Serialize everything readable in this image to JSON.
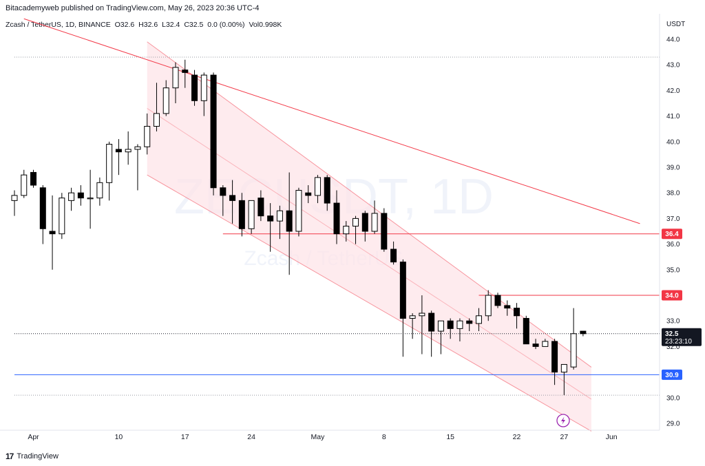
{
  "header": {
    "publisher_line": "Bitacademyweb published on TradingView.com, May 26, 2023 20:36 UTC-4"
  },
  "symbol": {
    "name": "Zcash / TetherUS, 1D, BINANCE",
    "open": "O32.6",
    "high": "H32.6",
    "low": "L32.4",
    "close": "C32.5",
    "change": "0.0 (0.00%)",
    "volume": "Vol0.998K"
  },
  "watermark": {
    "ticker": "ZECUSDT, 1D",
    "name": "Zcash / TetherUS"
  },
  "footer": {
    "brand": "TradingView"
  },
  "colors": {
    "up": "#ffffff",
    "down": "#000000",
    "trendline": "#f23645",
    "support": "#2962ff",
    "channel_fill": "#fde4e8"
  },
  "chart_data": {
    "type": "candlestick",
    "currency_label": "USDT",
    "ylim": [
      28.6,
      44.5
    ],
    "y_ticks": [
      "44.0",
      "43.0",
      "42.0",
      "41.0",
      "40.0",
      "39.0",
      "38.0",
      "37.0",
      "36.0",
      "35.0",
      "33.0",
      "32.0",
      "30.0",
      "29.0"
    ],
    "x_ticks": [
      {
        "label": "Apr",
        "date": "2023-04-01"
      },
      {
        "label": "10",
        "date": "2023-04-10"
      },
      {
        "label": "17",
        "date": "2023-04-17"
      },
      {
        "label": "24",
        "date": "2023-04-24"
      },
      {
        "label": "May",
        "date": "2023-05-01"
      },
      {
        "label": "8",
        "date": "2023-05-08"
      },
      {
        "label": "15",
        "date": "2023-05-15"
      },
      {
        "label": "22",
        "date": "2023-05-22"
      },
      {
        "label": "27",
        "date": "2023-05-27"
      },
      {
        "label": "Jun",
        "date": "2023-06-01"
      }
    ],
    "date_range": [
      "2023-03-30",
      "2023-06-06"
    ],
    "candles": [
      {
        "date": "2023-03-30",
        "o": 37.7,
        "h": 38.1,
        "l": 37.1,
        "c": 37.9
      },
      {
        "date": "2023-03-31",
        "o": 37.9,
        "h": 38.9,
        "l": 37.8,
        "c": 38.7
      },
      {
        "date": "2023-04-01",
        "o": 38.8,
        "h": 38.9,
        "l": 38.2,
        "c": 38.3
      },
      {
        "date": "2023-04-02",
        "o": 38.2,
        "h": 38.3,
        "l": 36.0,
        "c": 36.6
      },
      {
        "date": "2023-04-03",
        "o": 36.5,
        "h": 37.9,
        "l": 35.0,
        "c": 36.4
      },
      {
        "date": "2023-04-04",
        "o": 36.4,
        "h": 38.0,
        "l": 36.2,
        "c": 37.8
      },
      {
        "date": "2023-04-05",
        "o": 37.7,
        "h": 38.2,
        "l": 37.3,
        "c": 38.0
      },
      {
        "date": "2023-04-06",
        "o": 38.0,
        "h": 38.3,
        "l": 37.5,
        "c": 37.8
      },
      {
        "date": "2023-04-07",
        "o": 37.8,
        "h": 38.9,
        "l": 36.6,
        "c": 37.8
      },
      {
        "date": "2023-04-08",
        "o": 37.8,
        "h": 38.6,
        "l": 37.5,
        "c": 38.4
      },
      {
        "date": "2023-04-09",
        "o": 38.4,
        "h": 40.0,
        "l": 37.7,
        "c": 39.9
      },
      {
        "date": "2023-04-10",
        "o": 39.7,
        "h": 40.1,
        "l": 38.7,
        "c": 39.6
      },
      {
        "date": "2023-04-11",
        "o": 39.6,
        "h": 40.4,
        "l": 39.1,
        "c": 39.7
      },
      {
        "date": "2023-04-12",
        "o": 39.7,
        "h": 39.9,
        "l": 38.1,
        "c": 39.8
      },
      {
        "date": "2023-04-13",
        "o": 39.8,
        "h": 41.1,
        "l": 39.5,
        "c": 40.6
      },
      {
        "date": "2023-04-14",
        "o": 40.6,
        "h": 42.3,
        "l": 40.4,
        "c": 41.1
      },
      {
        "date": "2023-04-15",
        "o": 41.1,
        "h": 42.4,
        "l": 41.0,
        "c": 42.1
      },
      {
        "date": "2023-04-16",
        "o": 42.1,
        "h": 43.1,
        "l": 41.5,
        "c": 42.9
      },
      {
        "date": "2023-04-17",
        "o": 42.8,
        "h": 43.2,
        "l": 42.1,
        "c": 42.7
      },
      {
        "date": "2023-04-18",
        "o": 42.6,
        "h": 42.8,
        "l": 41.4,
        "c": 41.6
      },
      {
        "date": "2023-04-19",
        "o": 41.6,
        "h": 42.7,
        "l": 41.0,
        "c": 42.6
      },
      {
        "date": "2023-04-20",
        "o": 42.6,
        "h": 42.7,
        "l": 37.9,
        "c": 38.2
      },
      {
        "date": "2023-04-21",
        "o": 38.2,
        "h": 38.3,
        "l": 37.1,
        "c": 37.9
      },
      {
        "date": "2023-04-22",
        "o": 37.9,
        "h": 38.5,
        "l": 36.8,
        "c": 37.7
      },
      {
        "date": "2023-04-23",
        "o": 37.7,
        "h": 38.0,
        "l": 36.3,
        "c": 36.6
      },
      {
        "date": "2023-04-24",
        "o": 36.6,
        "h": 37.7,
        "l": 36.4,
        "c": 37.7
      },
      {
        "date": "2023-04-25",
        "o": 37.8,
        "h": 38.1,
        "l": 36.9,
        "c": 37.1
      },
      {
        "date": "2023-04-26",
        "o": 37.1,
        "h": 37.6,
        "l": 35.7,
        "c": 36.9
      },
      {
        "date": "2023-04-27",
        "o": 36.9,
        "h": 37.5,
        "l": 36.2,
        "c": 37.3
      },
      {
        "date": "2023-04-28",
        "o": 37.3,
        "h": 38.8,
        "l": 34.8,
        "c": 36.5
      },
      {
        "date": "2023-04-29",
        "o": 36.5,
        "h": 38.2,
        "l": 36.3,
        "c": 38.1
      },
      {
        "date": "2023-04-30",
        "o": 38.0,
        "h": 38.3,
        "l": 37.6,
        "c": 37.9
      },
      {
        "date": "2023-05-01",
        "o": 37.9,
        "h": 38.7,
        "l": 37.6,
        "c": 38.6
      },
      {
        "date": "2023-05-02",
        "o": 38.6,
        "h": 38.7,
        "l": 37.3,
        "c": 37.6
      },
      {
        "date": "2023-05-03",
        "o": 37.6,
        "h": 38.1,
        "l": 36.0,
        "c": 36.4
      },
      {
        "date": "2023-05-04",
        "o": 36.4,
        "h": 36.9,
        "l": 36.1,
        "c": 36.7
      },
      {
        "date": "2023-05-05",
        "o": 36.7,
        "h": 37.1,
        "l": 36.0,
        "c": 37.0
      },
      {
        "date": "2023-05-06",
        "o": 37.2,
        "h": 37.3,
        "l": 36.1,
        "c": 36.5
      },
      {
        "date": "2023-05-07",
        "o": 36.5,
        "h": 37.7,
        "l": 36.4,
        "c": 37.2
      },
      {
        "date": "2023-05-08",
        "o": 37.2,
        "h": 37.4,
        "l": 35.7,
        "c": 35.8
      },
      {
        "date": "2023-05-09",
        "o": 35.8,
        "h": 36.1,
        "l": 35.2,
        "c": 35.3
      },
      {
        "date": "2023-05-10",
        "o": 35.3,
        "h": 35.4,
        "l": 31.6,
        "c": 33.1
      },
      {
        "date": "2023-05-11",
        "o": 33.1,
        "h": 33.3,
        "l": 32.3,
        "c": 33.2
      },
      {
        "date": "2023-05-12",
        "o": 33.2,
        "h": 34.0,
        "l": 31.7,
        "c": 33.3
      },
      {
        "date": "2023-05-13",
        "o": 33.3,
        "h": 33.4,
        "l": 31.6,
        "c": 32.6
      },
      {
        "date": "2023-05-14",
        "o": 32.6,
        "h": 33.0,
        "l": 31.7,
        "c": 33.0
      },
      {
        "date": "2023-05-15",
        "o": 33.0,
        "h": 33.1,
        "l": 32.3,
        "c": 32.7
      },
      {
        "date": "2023-05-16",
        "o": 32.7,
        "h": 33.1,
        "l": 32.2,
        "c": 33.0
      },
      {
        "date": "2023-05-17",
        "o": 33.0,
        "h": 33.1,
        "l": 32.6,
        "c": 32.9
      },
      {
        "date": "2023-05-18",
        "o": 32.9,
        "h": 33.5,
        "l": 32.6,
        "c": 33.2
      },
      {
        "date": "2023-05-19",
        "o": 33.2,
        "h": 34.2,
        "l": 33.0,
        "c": 34.0
      },
      {
        "date": "2023-05-20",
        "o": 34.0,
        "h": 34.1,
        "l": 33.5,
        "c": 33.6
      },
      {
        "date": "2023-05-21",
        "o": 33.6,
        "h": 33.8,
        "l": 33.2,
        "c": 33.5
      },
      {
        "date": "2023-05-22",
        "o": 33.5,
        "h": 33.7,
        "l": 32.7,
        "c": 33.2
      },
      {
        "date": "2023-05-23",
        "o": 33.1,
        "h": 33.2,
        "l": 32.2,
        "c": 32.1
      },
      {
        "date": "2023-05-24",
        "o": 32.1,
        "h": 32.3,
        "l": 31.9,
        "c": 32.0
      },
      {
        "date": "2023-05-25",
        "o": 32.0,
        "h": 32.3,
        "l": 32.1,
        "c": 32.2
      },
      {
        "date": "2023-05-26",
        "o": 32.2,
        "h": 32.3,
        "l": 30.5,
        "c": 31.0
      },
      {
        "date": "2023-05-27",
        "o": 31.0,
        "h": 31.3,
        "l": 30.1,
        "c": 31.3
      },
      {
        "date": "2023-05-28",
        "o": 31.2,
        "h": 33.5,
        "l": 31.1,
        "c": 32.5
      },
      {
        "date": "2023-05-29",
        "o": 32.6,
        "h": 32.6,
        "l": 32.4,
        "c": 32.5
      }
    ],
    "price_labels": [
      {
        "value": 36.4,
        "text": "36.4",
        "color": "#f23645"
      },
      {
        "value": 34.0,
        "text": "34.0",
        "color": "#f23645"
      },
      {
        "value": 30.9,
        "text": "30.9",
        "color": "#2962ff"
      }
    ],
    "current_price": {
      "value": 32.5,
      "text": "32.5",
      "countdown": "23:23:10"
    },
    "horizontal_lines": [
      {
        "value": 36.4,
        "from": "2023-04-21",
        "color": "#f23645",
        "style": "solid"
      },
      {
        "value": 34.0,
        "from": "2023-05-18",
        "color": "#f23645",
        "style": "solid"
      },
      {
        "value": 30.9,
        "from": "2023-03-30",
        "color": "#2962ff",
        "style": "solid"
      },
      {
        "value": 43.3,
        "from": "2023-03-30",
        "color": "#9598a1",
        "style": "dotted"
      },
      {
        "value": 30.1,
        "from": "2023-03-30",
        "color": "#9598a1",
        "style": "dotted"
      },
      {
        "value": 32.5,
        "from": "2023-03-30",
        "color": "#131722",
        "style": "dotted"
      }
    ],
    "trendline": {
      "start": {
        "date": "2023-03-31",
        "value": 44.8
      },
      "end": {
        "date": "2023-06-04",
        "value": 36.8
      },
      "color": "#f23645"
    },
    "channel": {
      "upper_start": {
        "date": "2023-04-13",
        "value": 43.9
      },
      "upper_end": {
        "date": "2023-05-29",
        "value": 31.3
      },
      "lower_start": {
        "date": "2023-04-13",
        "value": 38.7
      },
      "lower_end": {
        "date": "2023-05-29",
        "value": 28.8
      },
      "color": "#f23645"
    }
  }
}
